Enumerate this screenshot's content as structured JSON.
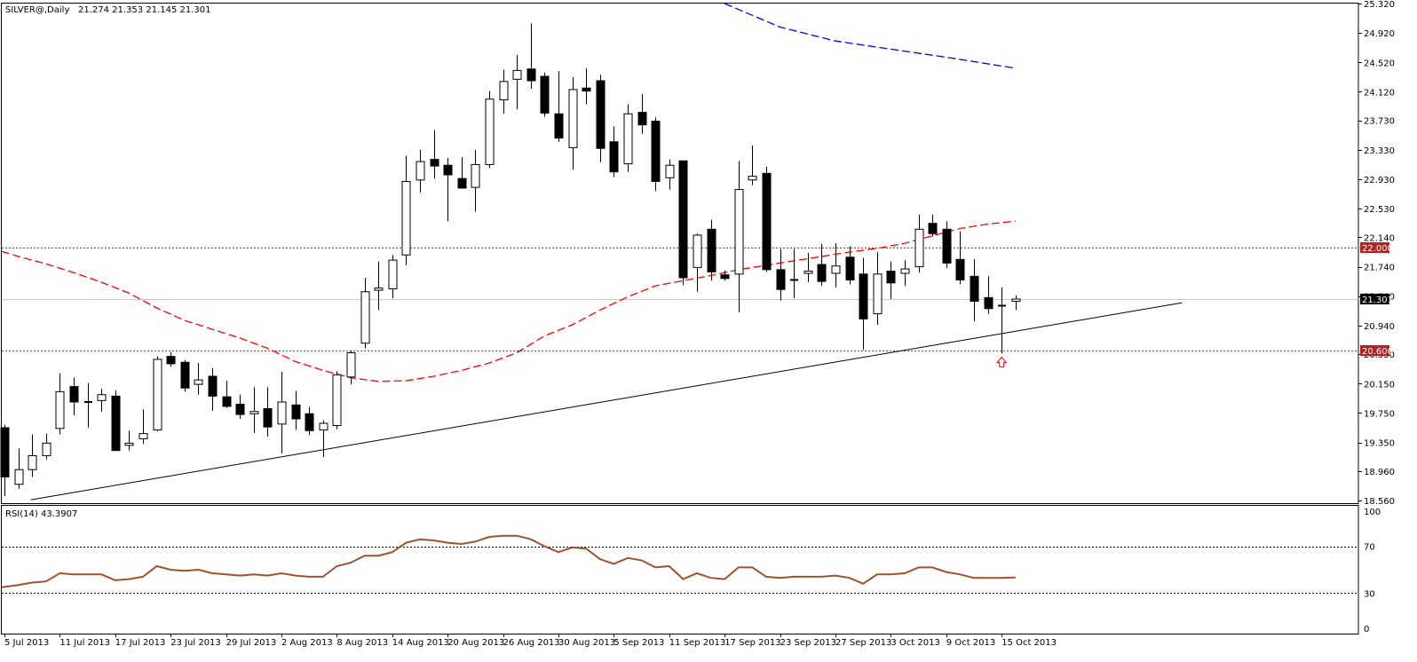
{
  "header": {
    "symbol": "SILVER@,Daily",
    "ohlc": "21.274 21.353 21.145 21.301"
  },
  "rsi_header": {
    "label": "RSI(14) 43.3907"
  },
  "colors": {
    "bull": "#ffffff",
    "bear": "#000000",
    "ma_fast": "#ff0000",
    "ma_slow": "#0000ff",
    "trendline": "#000000",
    "level_line": "#b22222",
    "rsi_line": "#a0522d",
    "arrow": "#ff0000"
  },
  "chart_data": [
    {
      "type": "candlestick",
      "title": "SILVER@,Daily",
      "ylim": [
        18.56,
        25.32
      ],
      "y_ticks": [
        "25.320",
        "24.920",
        "24.520",
        "24.120",
        "23.730",
        "23.330",
        "22.930",
        "22.530",
        "22.140",
        "21.740",
        "21.340",
        "20.940",
        "20.550",
        "20.150",
        "19.750",
        "19.350",
        "18.960",
        "18.560"
      ],
      "x_labels": [
        {
          "i": 0,
          "label": "5 Jul 2013"
        },
        {
          "i": 4,
          "label": "11 Jul 2013"
        },
        {
          "i": 8,
          "label": "17 Jul 2013"
        },
        {
          "i": 12,
          "label": "23 Jul 2013"
        },
        {
          "i": 16,
          "label": "29 Jul 2013"
        },
        {
          "i": 20,
          "label": "2 Aug 2013"
        },
        {
          "i": 24,
          "label": "8 Aug 2013"
        },
        {
          "i": 28,
          "label": "14 Aug 2013"
        },
        {
          "i": 32,
          "label": "20 Aug 2013"
        },
        {
          "i": 36,
          "label": "26 Aug 2013"
        },
        {
          "i": 40,
          "label": "30 Aug 2013"
        },
        {
          "i": 44,
          "label": "5 Sep 2013"
        },
        {
          "i": 48,
          "label": "11 Sep 2013"
        },
        {
          "i": 52,
          "label": "17 Sep 2013"
        },
        {
          "i": 56,
          "label": "23 Sep 2013"
        },
        {
          "i": 60,
          "label": "27 Sep 2013"
        },
        {
          "i": 64,
          "label": "3 Oct 2013"
        },
        {
          "i": 68,
          "label": "9 Oct 2013"
        },
        {
          "i": 72,
          "label": "15 Oct 2013"
        }
      ],
      "candles": [
        [
          19.55,
          19.59,
          18.62,
          18.88
        ],
        [
          18.78,
          19.27,
          18.72,
          18.98
        ],
        [
          18.98,
          19.46,
          18.88,
          19.17
        ],
        [
          19.17,
          19.47,
          19.12,
          19.34
        ],
        [
          19.54,
          20.29,
          19.46,
          20.04
        ],
        [
          20.11,
          20.23,
          19.72,
          19.9
        ],
        [
          19.89,
          20.16,
          19.55,
          19.9
        ],
        [
          19.92,
          20.08,
          19.77,
          20.0
        ],
        [
          19.98,
          20.06,
          19.24,
          19.24
        ],
        [
          19.31,
          19.51,
          19.24,
          19.34
        ],
        [
          19.4,
          19.8,
          19.33,
          19.47
        ],
        [
          19.52,
          20.52,
          19.5,
          20.48
        ],
        [
          20.52,
          20.58,
          20.38,
          20.42
        ],
        [
          20.44,
          20.47,
          20.04,
          20.09
        ],
        [
          20.14,
          20.43,
          20.0,
          20.2
        ],
        [
          20.25,
          20.36,
          19.78,
          19.98
        ],
        [
          19.97,
          20.19,
          19.82,
          19.84
        ],
        [
          19.87,
          20.0,
          19.67,
          19.73
        ],
        [
          19.74,
          20.1,
          19.48,
          19.77
        ],
        [
          19.81,
          20.1,
          19.43,
          19.56
        ],
        [
          19.6,
          20.31,
          19.2,
          19.9
        ],
        [
          19.86,
          20.05,
          19.52,
          19.67
        ],
        [
          19.74,
          19.83,
          19.45,
          19.51
        ],
        [
          19.52,
          19.65,
          19.15,
          19.61
        ],
        [
          19.58,
          20.32,
          19.53,
          20.27
        ],
        [
          20.24,
          20.6,
          20.14,
          20.57
        ],
        [
          20.7,
          21.59,
          20.63,
          21.4
        ],
        [
          21.42,
          21.81,
          21.15,
          21.45
        ],
        [
          21.44,
          21.9,
          21.31,
          21.83
        ],
        [
          21.9,
          23.25,
          21.76,
          22.9
        ],
        [
          22.92,
          23.33,
          22.75,
          23.17
        ],
        [
          23.2,
          23.6,
          22.94,
          23.11
        ],
        [
          23.12,
          23.22,
          22.36,
          22.99
        ],
        [
          22.94,
          23.23,
          22.8,
          22.81
        ],
        [
          22.82,
          23.33,
          22.49,
          23.13
        ],
        [
          23.13,
          24.13,
          23.08,
          24.02
        ],
        [
          24.01,
          24.42,
          23.82,
          24.26
        ],
        [
          24.29,
          24.62,
          23.88,
          24.41
        ],
        [
          24.43,
          25.05,
          24.16,
          24.27
        ],
        [
          24.33,
          24.38,
          23.78,
          23.83
        ],
        [
          23.82,
          24.4,
          23.44,
          23.49
        ],
        [
          23.36,
          24.32,
          23.06,
          24.15
        ],
        [
          24.17,
          24.44,
          23.95,
          24.13
        ],
        [
          24.27,
          24.35,
          23.16,
          23.35
        ],
        [
          23.44,
          23.65,
          22.96,
          23.03
        ],
        [
          23.14,
          23.95,
          23.03,
          23.82
        ],
        [
          23.84,
          24.09,
          23.55,
          23.67
        ],
        [
          23.72,
          23.77,
          22.77,
          22.9
        ],
        [
          22.95,
          23.2,
          22.79,
          23.12
        ],
        [
          23.18,
          23.18,
          21.49,
          21.59
        ],
        [
          21.73,
          22.19,
          21.4,
          22.17
        ],
        [
          22.25,
          22.38,
          21.55,
          21.67
        ],
        [
          21.63,
          21.69,
          21.55,
          21.58
        ],
        [
          21.64,
          23.18,
          21.12,
          22.79
        ],
        [
          22.92,
          23.39,
          22.85,
          22.97
        ],
        [
          23.01,
          23.1,
          21.67,
          21.7
        ],
        [
          21.7,
          21.98,
          21.28,
          21.43
        ],
        [
          21.56,
          21.98,
          21.31,
          21.56
        ],
        [
          21.65,
          21.93,
          21.53,
          21.68
        ],
        [
          21.77,
          22.05,
          21.48,
          21.54
        ],
        [
          21.65,
          22.06,
          21.46,
          21.75
        ],
        [
          21.87,
          22.02,
          21.5,
          21.56
        ],
        [
          21.64,
          21.86,
          20.61,
          21.03
        ],
        [
          21.1,
          21.94,
          20.95,
          21.64
        ],
        [
          21.68,
          21.81,
          21.3,
          21.52
        ],
        [
          21.65,
          21.83,
          21.48,
          21.71
        ],
        [
          21.74,
          22.45,
          21.66,
          22.25
        ],
        [
          22.33,
          22.45,
          22.15,
          22.19
        ],
        [
          22.25,
          22.36,
          21.72,
          21.79
        ],
        [
          21.84,
          22.22,
          21.5,
          21.56
        ],
        [
          21.61,
          21.84,
          21.0,
          21.27
        ],
        [
          21.32,
          21.61,
          21.1,
          21.17
        ],
        [
          21.21,
          21.46,
          20.56,
          21.21
        ],
        [
          21.27,
          21.35,
          21.15,
          21.3
        ]
      ],
      "ma_fast": [
        [
          -0.2,
          21.95
        ],
        [
          1,
          21.88
        ],
        [
          3,
          21.78
        ],
        [
          5,
          21.66
        ],
        [
          7,
          21.53
        ],
        [
          9,
          21.38
        ],
        [
          11,
          21.18
        ],
        [
          13,
          21.01
        ],
        [
          15,
          20.89
        ],
        [
          17,
          20.77
        ],
        [
          19,
          20.63
        ],
        [
          21,
          20.45
        ],
        [
          23,
          20.33
        ],
        [
          25,
          20.23
        ],
        [
          27,
          20.18
        ],
        [
          29,
          20.19
        ],
        [
          31,
          20.25
        ],
        [
          33,
          20.33
        ],
        [
          35,
          20.43
        ],
        [
          37,
          20.57
        ],
        [
          39,
          20.8
        ],
        [
          41,
          20.95
        ],
        [
          43,
          21.15
        ],
        [
          45,
          21.33
        ],
        [
          47,
          21.48
        ],
        [
          49,
          21.55
        ],
        [
          51,
          21.62
        ],
        [
          53,
          21.7
        ],
        [
          55,
          21.76
        ],
        [
          57,
          21.82
        ],
        [
          59,
          21.88
        ],
        [
          61,
          21.94
        ],
        [
          63,
          21.99
        ],
        [
          65,
          22.06
        ],
        [
          67,
          22.16
        ],
        [
          69,
          22.26
        ],
        [
          71,
          22.32
        ],
        [
          73,
          22.36
        ]
      ],
      "ma_slow": [
        [
          52.0,
          25.32
        ],
        [
          56,
          25.0
        ],
        [
          60,
          24.81
        ],
        [
          64,
          24.7
        ],
        [
          68,
          24.59
        ],
        [
          73,
          24.44
        ]
      ],
      "trendline": [
        [
          1.9,
          18.57
        ],
        [
          85,
          21.25
        ]
      ],
      "levels": [
        {
          "value": 22.0,
          "label": "22.000"
        },
        {
          "value": 20.6,
          "label": "20.600"
        }
      ],
      "last_price": {
        "value": 21.301,
        "label": "21.301"
      },
      "arrow": {
        "i": 72,
        "y": 20.45
      }
    },
    {
      "type": "line",
      "title": "RSI(14) 43.3907",
      "ylim": [
        0,
        100
      ],
      "y_ticks": [
        "100",
        "70",
        "30",
        "0"
      ],
      "levels": [
        70,
        30
      ],
      "series": [
        {
          "values": [
            [
              -0.2,
              35
            ],
            [
              1,
              37
            ],
            [
              2,
              39
            ],
            [
              3,
              40
            ],
            [
              4,
              47
            ],
            [
              5,
              46
            ],
            [
              6,
              46
            ],
            [
              7,
              46
            ],
            [
              8,
              41
            ],
            [
              9,
              42
            ],
            [
              10,
              44
            ],
            [
              11,
              53
            ],
            [
              12,
              50
            ],
            [
              13,
              49
            ],
            [
              14,
              50
            ],
            [
              15,
              47
            ],
            [
              16,
              46
            ],
            [
              17,
              45
            ],
            [
              18,
              46
            ],
            [
              19,
              45
            ],
            [
              20,
              47
            ],
            [
              21,
              45
            ],
            [
              22,
              44
            ],
            [
              23,
              44
            ],
            [
              24,
              53
            ],
            [
              25,
              56
            ],
            [
              26,
              62
            ],
            [
              27,
              62
            ],
            [
              28,
              65
            ],
            [
              29,
              73
            ],
            [
              30,
              76
            ],
            [
              31,
              75
            ],
            [
              32,
              73
            ],
            [
              33,
              72
            ],
            [
              34,
              74
            ],
            [
              35,
              78
            ],
            [
              36,
              79
            ],
            [
              37,
              79
            ],
            [
              38,
              76
            ],
            [
              39,
              70
            ],
            [
              40,
              65
            ],
            [
              41,
              69
            ],
            [
              42,
              68
            ],
            [
              43,
              59
            ],
            [
              44,
              55
            ],
            [
              45,
              60
            ],
            [
              46,
              58
            ],
            [
              47,
              52
            ],
            [
              48,
              53
            ],
            [
              49,
              42
            ],
            [
              50,
              47
            ],
            [
              51,
              43
            ],
            [
              52,
              42
            ],
            [
              53,
              52
            ],
            [
              54,
              52
            ],
            [
              55,
              44
            ],
            [
              56,
              43
            ],
            [
              57,
              44
            ],
            [
              58,
              44
            ],
            [
              59,
              44
            ],
            [
              60,
              45
            ],
            [
              61,
              43
            ],
            [
              62,
              38
            ],
            [
              63,
              46
            ],
            [
              64,
              46
            ],
            [
              65,
              47
            ],
            [
              66,
              52
            ],
            [
              67,
              52
            ],
            [
              68,
              48
            ],
            [
              69,
              46
            ],
            [
              70,
              43
            ],
            [
              71,
              43
            ],
            [
              72,
              43
            ],
            [
              73,
              43.39
            ]
          ]
        }
      ]
    }
  ]
}
